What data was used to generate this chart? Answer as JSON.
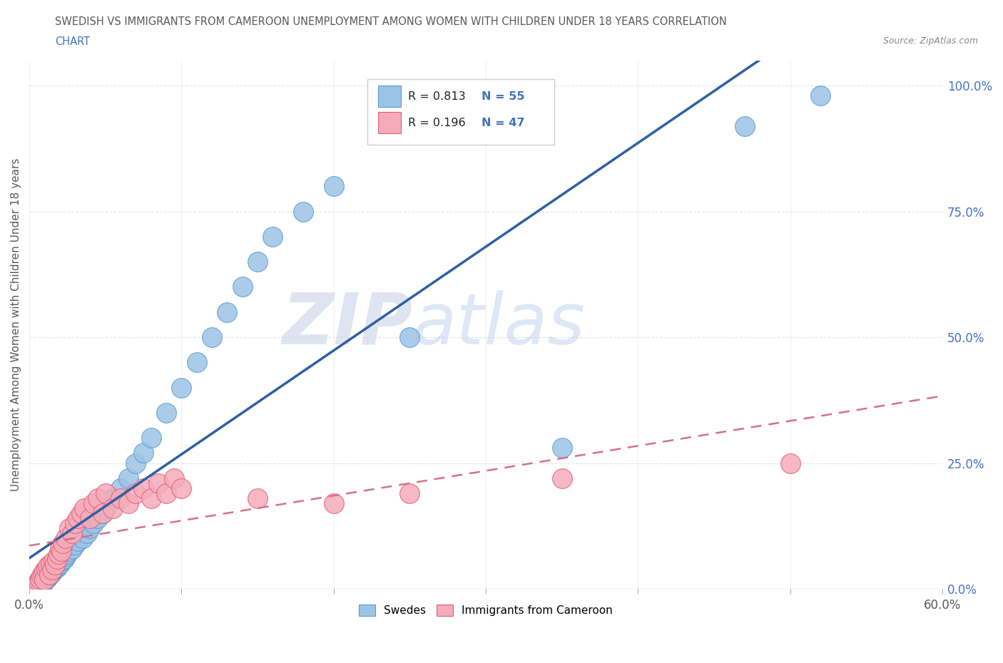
{
  "title_line1": "SWEDISH VS IMMIGRANTS FROM CAMEROON UNEMPLOYMENT AMONG WOMEN WITH CHILDREN UNDER 18 YEARS CORRELATION",
  "title_line2": "CHART",
  "source": "Source: ZipAtlas.com",
  "xlim": [
    0.0,
    0.6
  ],
  "ylim": [
    0.0,
    1.05
  ],
  "ylabel_ticks": [
    0.0,
    0.25,
    0.5,
    0.75,
    1.0
  ],
  "ylabel_labels": [
    "0.0%",
    "25.0%",
    "50.0%",
    "75.0%",
    "100.0%"
  ],
  "xtick_positions": [
    0.0,
    0.1,
    0.2,
    0.3,
    0.4,
    0.5,
    0.6
  ],
  "swedes_x": [
    0.005,
    0.007,
    0.008,
    0.009,
    0.01,
    0.01,
    0.011,
    0.012,
    0.012,
    0.013,
    0.014,
    0.015,
    0.015,
    0.016,
    0.017,
    0.018,
    0.018,
    0.019,
    0.02,
    0.021,
    0.022,
    0.023,
    0.024,
    0.025,
    0.026,
    0.028,
    0.03,
    0.032,
    0.035,
    0.038,
    0.04,
    0.042,
    0.045,
    0.048,
    0.05,
    0.055,
    0.06,
    0.065,
    0.07,
    0.075,
    0.08,
    0.09,
    0.1,
    0.11,
    0.12,
    0.13,
    0.14,
    0.15,
    0.16,
    0.18,
    0.2,
    0.25,
    0.35,
    0.47,
    0.52
  ],
  "swedes_y": [
    0.005,
    0.008,
    0.01,
    0.012,
    0.015,
    0.018,
    0.02,
    0.022,
    0.025,
    0.028,
    0.03,
    0.032,
    0.035,
    0.038,
    0.04,
    0.042,
    0.045,
    0.048,
    0.05,
    0.055,
    0.058,
    0.06,
    0.065,
    0.07,
    0.075,
    0.08,
    0.088,
    0.095,
    0.1,
    0.11,
    0.12,
    0.13,
    0.14,
    0.15,
    0.16,
    0.18,
    0.2,
    0.22,
    0.25,
    0.27,
    0.3,
    0.35,
    0.4,
    0.45,
    0.5,
    0.55,
    0.6,
    0.65,
    0.7,
    0.75,
    0.8,
    0.5,
    0.28,
    0.92,
    0.98
  ],
  "cameroon_x": [
    0.003,
    0.005,
    0.006,
    0.007,
    0.008,
    0.009,
    0.01,
    0.01,
    0.011,
    0.012,
    0.013,
    0.014,
    0.015,
    0.016,
    0.017,
    0.018,
    0.019,
    0.02,
    0.021,
    0.022,
    0.024,
    0.026,
    0.028,
    0.03,
    0.032,
    0.034,
    0.036,
    0.04,
    0.042,
    0.045,
    0.048,
    0.05,
    0.055,
    0.06,
    0.065,
    0.07,
    0.075,
    0.08,
    0.085,
    0.09,
    0.095,
    0.1,
    0.15,
    0.2,
    0.25,
    0.35,
    0.5
  ],
  "cameroon_y": [
    0.005,
    0.01,
    0.015,
    0.02,
    0.025,
    0.03,
    0.035,
    0.018,
    0.04,
    0.045,
    0.028,
    0.05,
    0.038,
    0.055,
    0.048,
    0.06,
    0.07,
    0.08,
    0.075,
    0.09,
    0.1,
    0.12,
    0.11,
    0.13,
    0.14,
    0.15,
    0.16,
    0.14,
    0.17,
    0.18,
    0.15,
    0.19,
    0.16,
    0.18,
    0.17,
    0.19,
    0.2,
    0.18,
    0.21,
    0.19,
    0.22,
    0.2,
    0.18,
    0.17,
    0.19,
    0.22,
    0.25
  ],
  "blue_marker_color": "#9DC3E6",
  "blue_edge_color": "#5B9BD5",
  "pink_marker_color": "#F4ACBA",
  "pink_edge_color": "#E06078",
  "blue_line_color": "#2E5FA3",
  "pink_line_color": "#D4708A",
  "title_color": "#595959",
  "axis_label_color": "#595959",
  "right_axis_color": "#4472C4",
  "watermark_zip_color": "#C8D4E8",
  "watermark_atlas_color": "#BDD0EE",
  "grid_color": "#DDDDDD",
  "background_color": "#FFFFFF",
  "legend_r1_label": "R = 0.813",
  "legend_n1_label": "N = 55",
  "legend_r2_label": "R = 0.196",
  "legend_n2_label": "N = 47",
  "bottom_legend_label1": "Swedes",
  "bottom_legend_label2": "Immigrants from Cameroon"
}
